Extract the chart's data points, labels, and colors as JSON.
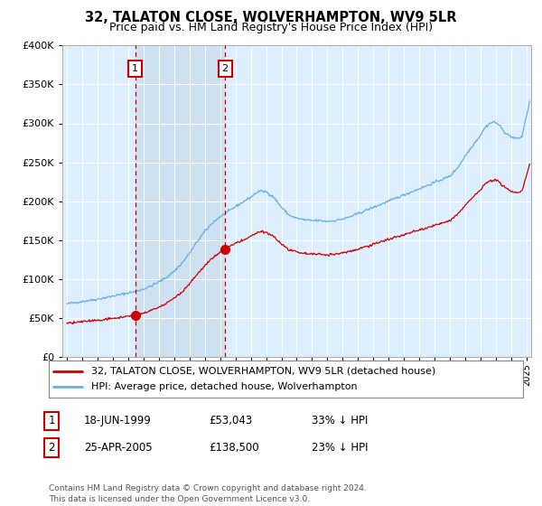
{
  "title": "32, TALATON CLOSE, WOLVERHAMPTON, WV9 5LR",
  "subtitle": "Price paid vs. HM Land Registry's House Price Index (HPI)",
  "legend_line1": "32, TALATON CLOSE, WOLVERHAMPTON, WV9 5LR (detached house)",
  "legend_line2": "HPI: Average price, detached house, Wolverhampton",
  "footer": "Contains HM Land Registry data © Crown copyright and database right 2024.\nThis data is licensed under the Open Government Licence v3.0.",
  "annotation1_date": "18-JUN-1999",
  "annotation1_price": "£53,043",
  "annotation1_hpi": "33% ↓ HPI",
  "annotation2_date": "25-APR-2005",
  "annotation2_price": "£138,500",
  "annotation2_hpi": "23% ↓ HPI",
  "sale1_x": 1999.46,
  "sale1_y": 53043,
  "sale2_x": 2005.32,
  "sale2_y": 138500,
  "hpi_color": "#6aaee8",
  "sale_color": "#cc0000",
  "background_color": "#ffffff",
  "plot_bg_color": "#ddeeff",
  "grid_color": "#bbbbcc",
  "shade_color": "#ccdcee",
  "annotation_box_color": "#cc0000",
  "ylim": [
    0,
    400000
  ],
  "xlim": [
    1994.7,
    2025.3
  ]
}
